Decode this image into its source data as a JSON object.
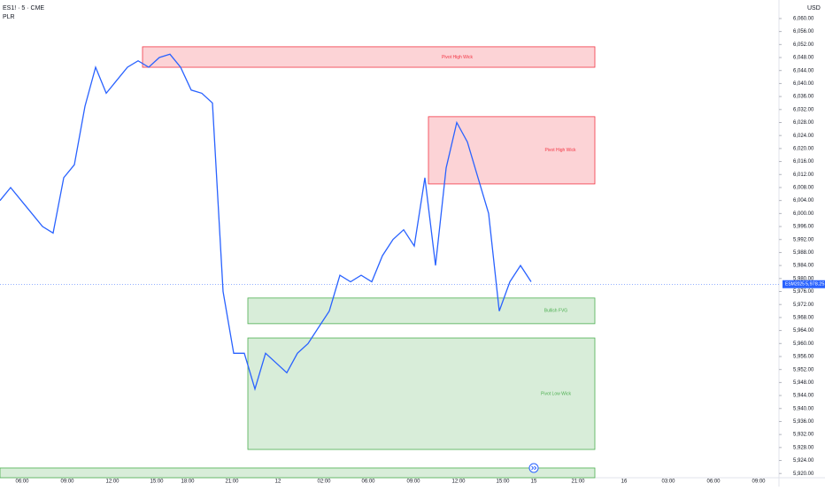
{
  "header": {
    "symbol": "ES1! · 5 · CME",
    "indicator": "PLR"
  },
  "price_axis": {
    "currency": "USD",
    "ylim": [
      5918.7,
      6065.7
    ],
    "ticks": [
      {
        "value": 6060,
        "label": "6,060.00"
      },
      {
        "value": 6056,
        "label": "6,056.00"
      },
      {
        "value": 6052,
        "label": "6,052.00"
      },
      {
        "value": 6048,
        "label": "6,048.00"
      },
      {
        "value": 6044,
        "label": "6,044.00"
      },
      {
        "value": 6040,
        "label": "6,040.00"
      },
      {
        "value": 6036,
        "label": "6,036.00"
      },
      {
        "value": 6032,
        "label": "6,032.00"
      },
      {
        "value": 6028,
        "label": "6,028.00"
      },
      {
        "value": 6024,
        "label": "6,024.00"
      },
      {
        "value": 6020,
        "label": "6,020.00"
      },
      {
        "value": 6016,
        "label": "6,016.00"
      },
      {
        "value": 6012,
        "label": "6,012.00"
      },
      {
        "value": 6008,
        "label": "6,008.00"
      },
      {
        "value": 6004,
        "label": "6,004.00"
      },
      {
        "value": 6000,
        "label": "6,000.00"
      },
      {
        "value": 5996,
        "label": "5,996.00"
      },
      {
        "value": 5992,
        "label": "5,992.00"
      },
      {
        "value": 5988,
        "label": "5,988.00"
      },
      {
        "value": 5984,
        "label": "5,984.00"
      },
      {
        "value": 5980,
        "label": "5,980.00"
      },
      {
        "value": 5976,
        "label": "5,976.00"
      },
      {
        "value": 5972,
        "label": "5,972.00"
      },
      {
        "value": 5968,
        "label": "5,968.00"
      },
      {
        "value": 5964,
        "label": "5,964.00"
      },
      {
        "value": 5960,
        "label": "5,960.00"
      },
      {
        "value": 5956,
        "label": "5,956.00"
      },
      {
        "value": 5952,
        "label": "5,952.00"
      },
      {
        "value": 5948,
        "label": "5,948.00"
      },
      {
        "value": 5944,
        "label": "5,944.00"
      },
      {
        "value": 5940,
        "label": "5,940.00"
      },
      {
        "value": 5936,
        "label": "5,936.00"
      },
      {
        "value": 5932,
        "label": "5,932.00"
      },
      {
        "value": 5928,
        "label": "5,928.00"
      },
      {
        "value": 5924,
        "label": "5,924.00"
      },
      {
        "value": 5920,
        "label": "5,920.00"
      }
    ]
  },
  "time_axis": {
    "labels": [
      "06:00",
      "09:00",
      "12:00",
      "15:00",
      "18:00",
      "21:00",
      "12",
      "02:00",
      "06:00",
      "09:00",
      "12:00",
      "15:00",
      "15",
      "21:00",
      "16",
      "03:00",
      "06:00",
      "09:00"
    ]
  },
  "price": {
    "color": "#2962ff",
    "close": [
      6004,
      6008,
      6004,
      6000,
      5996,
      5994,
      6011,
      6015,
      6033,
      6045,
      6037,
      6041,
      6045,
      6047,
      6045,
      6048,
      6049,
      6045,
      6038,
      6037,
      6034,
      5976,
      5957,
      5957,
      5946,
      5957,
      5954,
      5951,
      5957,
      5960,
      5965,
      5970,
      5981,
      5979,
      5981,
      5979,
      5987,
      5992,
      5995,
      5990,
      6011,
      5984,
      6014,
      6028,
      6022,
      6011,
      6000,
      5970,
      5979,
      5984,
      5979
    ]
  },
  "zones": [
    {
      "label": "Pivot High Wick",
      "top": 6051.3,
      "bottom": 6045.0,
      "kind": "high"
    },
    {
      "label": "Pivot High Wick",
      "top": 6029.8,
      "bottom": 6009.1,
      "kind": "high"
    },
    {
      "label": "Bullish FVG",
      "top": 5974.0,
      "bottom": 5966.1,
      "kind": "low"
    },
    {
      "label": "Pivot Low Wick",
      "top": 5961.7,
      "bottom": 5927.4,
      "kind": "low"
    },
    {
      "top": 5921.7,
      "bottom": 5918.7,
      "kind": "low"
    }
  ],
  "last_price": {
    "symbol": "ESM2025",
    "value": 5978.25,
    "label": "5,978.25"
  }
}
